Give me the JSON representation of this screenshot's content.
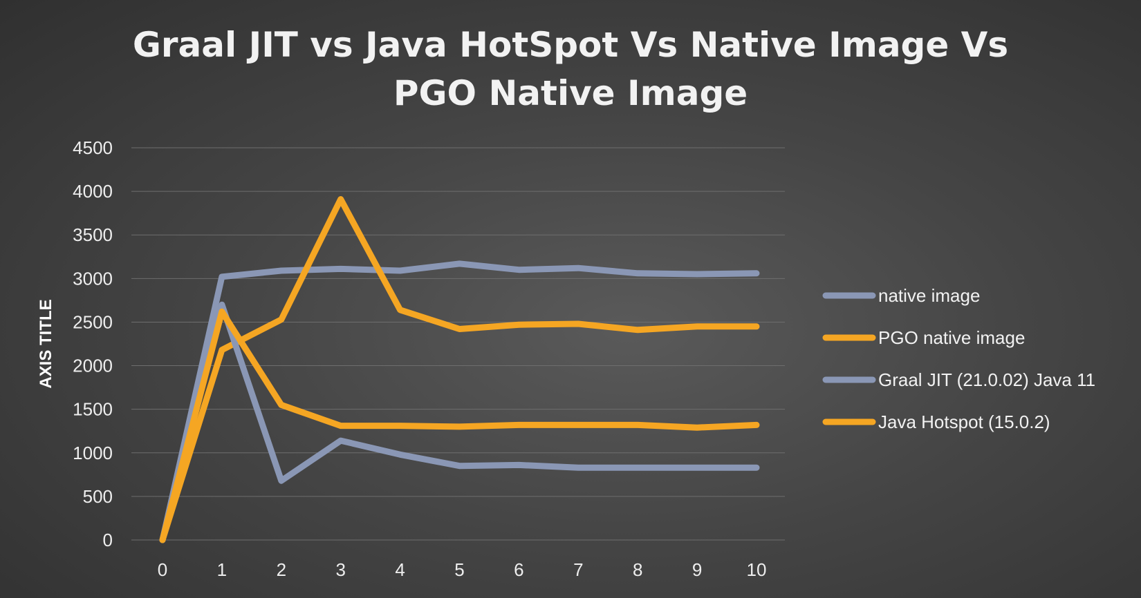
{
  "chart_data": {
    "type": "line",
    "title": "Graal JIT vs Java HotSpot Vs Native Image Vs PGO Native Image",
    "title_lines": [
      "Graal JIT vs Java HotSpot Vs Native Image Vs",
      "PGO Native Image"
    ],
    "xlabel": "",
    "ylabel": "AXIS TITLE",
    "x": [
      0,
      1,
      2,
      3,
      4,
      5,
      6,
      7,
      8,
      9,
      10
    ],
    "x_tick_labels": [
      "0",
      "1",
      "2",
      "3",
      "4",
      "5",
      "6",
      "7",
      "8",
      "9",
      "10"
    ],
    "y_tick_labels": [
      "0",
      "500",
      "1000",
      "1500",
      "2000",
      "2500",
      "3000",
      "3500",
      "4000",
      "4500"
    ],
    "ylim": [
      0,
      4500
    ],
    "grid": true,
    "legend_position": "right",
    "series": [
      {
        "name": "native image",
        "color": "#8a97b5",
        "values": [
          0,
          3020,
          3090,
          3110,
          3090,
          3170,
          3100,
          3120,
          3060,
          3050,
          3060
        ]
      },
      {
        "name": "PGO native image",
        "color": "#f5a623",
        "values": [
          0,
          2180,
          2530,
          3910,
          2640,
          2420,
          2470,
          2480,
          2410,
          2450,
          2450
        ]
      },
      {
        "name": "Graal JIT (21.0.02) Java 11",
        "color": "#8a97b5",
        "values": [
          0,
          2700,
          680,
          1140,
          980,
          850,
          860,
          830,
          830,
          830,
          830
        ]
      },
      {
        "name": "Java Hotspot (15.0.2)",
        "color": "#f5a623",
        "values": [
          0,
          2620,
          1550,
          1310,
          1310,
          1300,
          1320,
          1320,
          1320,
          1290,
          1320
        ]
      }
    ]
  }
}
